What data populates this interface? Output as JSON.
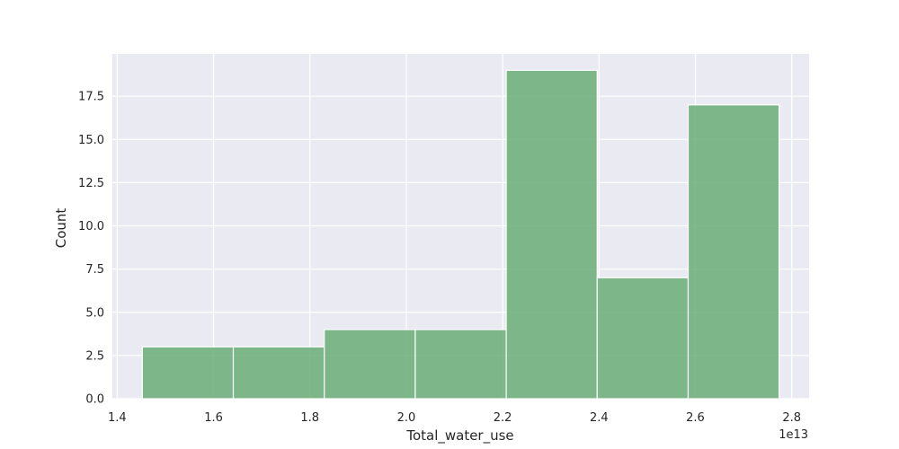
{
  "chart_data": {
    "type": "histogram",
    "xlabel": "Total_water_use",
    "ylabel": "Count",
    "x_offset_label": "1e13",
    "bins": [
      {
        "start": 1.4522,
        "end": 1.641,
        "count": 3
      },
      {
        "start": 1.641,
        "end": 1.8298,
        "count": 3
      },
      {
        "start": 1.8298,
        "end": 2.0186,
        "count": 4
      },
      {
        "start": 2.0186,
        "end": 2.2074,
        "count": 4
      },
      {
        "start": 2.2074,
        "end": 2.3962,
        "count": 19
      },
      {
        "start": 2.3962,
        "end": 2.585,
        "count": 7
      },
      {
        "start": 2.585,
        "end": 2.7738,
        "count": 17
      }
    ],
    "xlim": [
      1.39,
      2.836
    ],
    "ylim": [
      0,
      19.95
    ],
    "xticks": [
      {
        "value": 1.4,
        "label": "1.4"
      },
      {
        "value": 1.6,
        "label": "1.6"
      },
      {
        "value": 1.8,
        "label": "1.8"
      },
      {
        "value": 2.0,
        "label": "2.0"
      },
      {
        "value": 2.2,
        "label": "2.2"
      },
      {
        "value": 2.4,
        "label": "2.4"
      },
      {
        "value": 2.6,
        "label": "2.6"
      },
      {
        "value": 2.8,
        "label": "2.8"
      }
    ],
    "yticks": [
      {
        "value": 0,
        "label": "0.0"
      },
      {
        "value": 2.5,
        "label": "2.5"
      },
      {
        "value": 5,
        "label": "5.0"
      },
      {
        "value": 7.5,
        "label": "7.5"
      },
      {
        "value": 10,
        "label": "10.0"
      },
      {
        "value": 12.5,
        "label": "12.5"
      },
      {
        "value": 15,
        "label": "15.0"
      },
      {
        "value": 17.5,
        "label": "17.5"
      }
    ],
    "grid": true,
    "colors": {
      "background": "#eaeaf2",
      "bar_fill": "#6aae77",
      "bar_edge": "#ffffff",
      "grid": "#ffffff"
    }
  }
}
